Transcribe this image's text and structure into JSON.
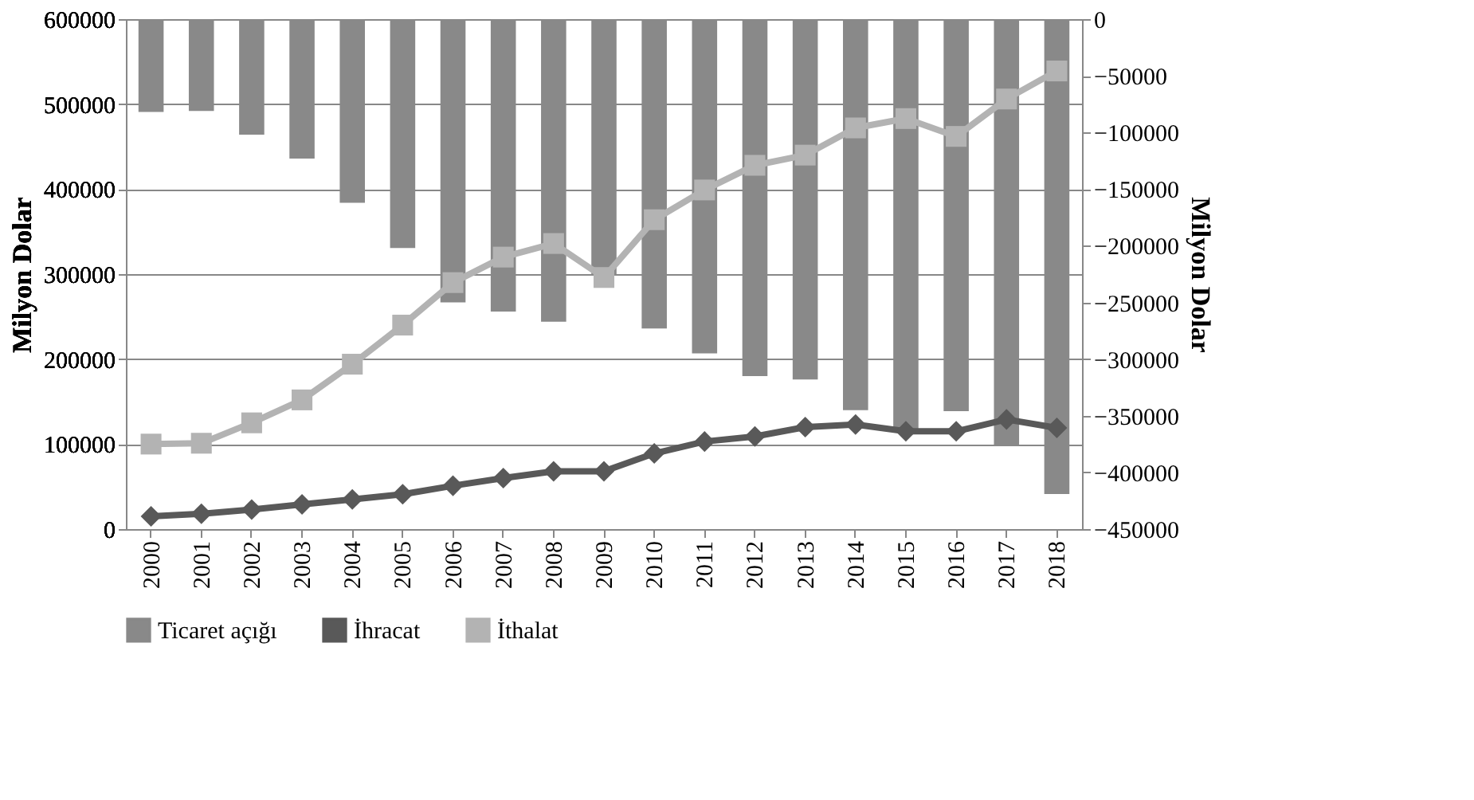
{
  "chart_data": {
    "type": "line",
    "xlabel": null,
    "ylabel": "Milyon Dolar",
    "y2label": "Milyon Dolar",
    "categories": [
      "2000",
      "2001",
      "2002",
      "2003",
      "2004",
      "2005",
      "2006",
      "2007",
      "2008",
      "2009",
      "2010",
      "2011",
      "2012",
      "2013",
      "2014",
      "2015",
      "2016",
      "2017",
      "2018"
    ],
    "ylim": [
      0,
      600000
    ],
    "yticks": [
      0,
      100000,
      200000,
      300000,
      400000,
      500000,
      600000
    ],
    "y2lim": [
      -450000,
      0
    ],
    "y2ticks": [
      -450000,
      -400000,
      -350000,
      -300000,
      -250000,
      -200000,
      -150000,
      -100000,
      -50000,
      0
    ],
    "grid": "y",
    "legend": "bottom",
    "series": [
      {
        "name": "Ticaret açığı",
        "type": "bar",
        "axis": "y2",
        "color": "#898989",
        "values": [
          -82000,
          -81000,
          -102000,
          -123000,
          -162000,
          -202000,
          -250000,
          -258000,
          -267000,
          -225000,
          -273000,
          -295000,
          -315000,
          -318000,
          -345000,
          -365000,
          -346000,
          -376000,
          -419000
        ]
      },
      {
        "name": "İhracat",
        "marker": "diamond",
        "color": "#595959",
        "values": [
          15000,
          18000,
          23000,
          29000,
          35000,
          41000,
          51000,
          60000,
          68000,
          68000,
          89000,
          103000,
          109000,
          120000,
          123000,
          115000,
          115000,
          129000,
          119000
        ]
      },
      {
        "name": "İthalat",
        "marker": "square",
        "color": "#b3b3b3",
        "values": [
          100000,
          101000,
          125000,
          152000,
          194000,
          240000,
          290000,
          320000,
          336000,
          296000,
          364000,
          399000,
          428000,
          440000,
          472000,
          483000,
          462000,
          506000,
          539000
        ]
      }
    ]
  }
}
